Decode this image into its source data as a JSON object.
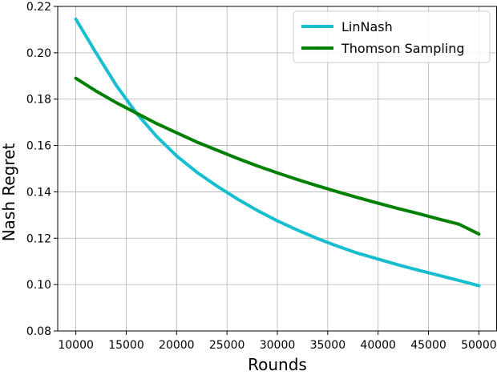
{
  "chart_data": {
    "type": "line",
    "xlabel": "Rounds",
    "ylabel": "Nash Regret",
    "xlim": [
      8200,
      51800
    ],
    "ylim": [
      0.08,
      0.22
    ],
    "x_ticks": [
      10000,
      15000,
      20000,
      25000,
      30000,
      35000,
      40000,
      45000,
      50000
    ],
    "y_ticks": [
      0.08,
      0.1,
      0.12,
      0.14,
      0.16,
      0.18,
      0.2,
      0.22
    ],
    "x_tick_labels": [
      "10000",
      "15000",
      "20000",
      "25000",
      "30000",
      "35000",
      "40000",
      "45000",
      "50000"
    ],
    "y_tick_labels": [
      "0.08",
      "0.10",
      "0.12",
      "0.14",
      "0.16",
      "0.18",
      "0.20",
      "0.22"
    ],
    "grid": true,
    "legend_position": "top-right",
    "x": [
      10000,
      12000,
      14000,
      16000,
      18000,
      20000,
      22000,
      24000,
      26000,
      28000,
      30000,
      32000,
      34000,
      36000,
      38000,
      40000,
      42000,
      44000,
      46000,
      48000,
      50000
    ],
    "series": [
      {
        "name": "LinNash",
        "color": "#17becf",
        "values": [
          0.2145,
          0.2,
          0.186,
          0.174,
          0.164,
          0.1555,
          0.1485,
          0.1425,
          0.137,
          0.132,
          0.1275,
          0.1235,
          0.1198,
          0.1165,
          0.1135,
          0.111,
          0.1085,
          0.1062,
          0.104,
          0.1018,
          0.0995
        ]
      },
      {
        "name": "Thomson Sampling",
        "color": "#008000",
        "values": [
          0.189,
          0.1835,
          0.1785,
          0.174,
          0.1695,
          0.1655,
          0.1615,
          0.158,
          0.1545,
          0.1512,
          0.1482,
          0.1453,
          0.1426,
          0.14,
          0.1375,
          0.1351,
          0.1328,
          0.1306,
          0.1283,
          0.1261,
          0.1218
        ]
      }
    ]
  }
}
